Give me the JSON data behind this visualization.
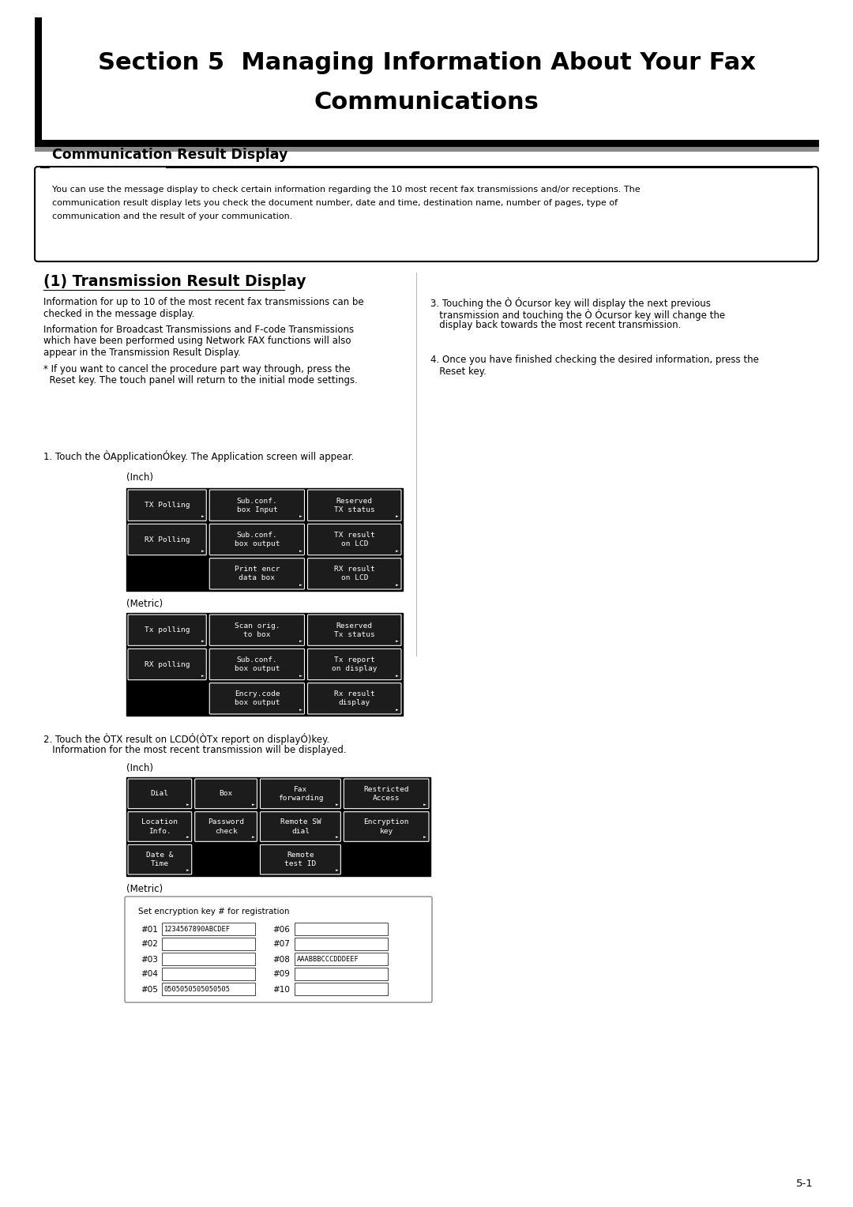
{
  "bg_color": "#ffffff",
  "title_line1": "Section 5  Managing Information About Your Fax",
  "title_line2": "Communications",
  "section_header": "Communication Result Display",
  "section_intro_lines": [
    "You can use the message display to check certain information regarding the 10 most recent fax transmissions and/or receptions. The",
    "communication result display lets you check the document number, date and time, destination name, number of pages, type of",
    "communication and the result of your communication."
  ],
  "subsection_title": "(1) Transmission Result Display",
  "left_para1": [
    "Information for up to 10 of the most recent fax transmissions can be",
    "checked in the message display."
  ],
  "left_para2": [
    "Information for Broadcast Transmissions and F-code Transmissions",
    "which have been performed using Network FAX functions will also",
    "appear in the Transmission Result Display."
  ],
  "left_para3": [
    "* If you want to cancel the procedure part way through, press the",
    "  Reset key. The touch panel will return to the initial mode settings."
  ],
  "right_text3": [
    "3. Touching the Ò Ócursor key will display the next previous",
    "   transmission and touching the Ò Ócursor key will change the",
    "   display back towards the most recent transmission."
  ],
  "right_text4": [
    "4. Once you have finished checking the desired information, press the",
    "   Reset key."
  ],
  "step1_text": "1. Touch the ÒApplicationÓkey. The Application screen will appear.",
  "inch_label": "(Inch)",
  "metric_label": "(Metric)",
  "inch_buttons": [
    [
      "TX Polling",
      "Sub.conf.\nbox Input",
      "Reserved\nTX status"
    ],
    [
      "RX Polling",
      "Sub.conf.\nbox output",
      "TX result\non LCD"
    ],
    [
      "",
      "Print encr\ndata box",
      "RX result\non LCD"
    ]
  ],
  "metric_buttons": [
    [
      "Tx polling",
      "Scan orig.\nto box",
      "Reserved\nTx status"
    ],
    [
      "RX polling",
      "Sub.conf.\nbox output",
      "Tx report\non display"
    ],
    [
      "",
      "Encry.code\nbox output",
      "Rx result\ndisplay"
    ]
  ],
  "step2_lines": [
    "2. Touch the ÒTX result on LCDÓ(ÒTx report on displayÓ)key.",
    "   Information for the most recent transmission will be displayed."
  ],
  "inch2_label": "(Inch)",
  "inch2_buttons": [
    [
      "Dial",
      "Box",
      "Fax\nforwarding",
      "Restricted\nAccess"
    ],
    [
      "Location\nInfo.",
      "Password\ncheck",
      "Remote SW\ndial",
      "Encryption\nkey"
    ],
    [
      "Date &\nTime",
      "",
      "Remote\ntest ID",
      ""
    ]
  ],
  "metric2_label": "(Metric)",
  "metric2_title": "Set encryption key # for registration",
  "metric2_rows": [
    [
      "#01",
      "1234567890ABCDEF",
      "#06",
      ""
    ],
    [
      "#02",
      "",
      "#07",
      ""
    ],
    [
      "#03",
      "",
      "#08",
      "AAABBBCCCDDDEEF"
    ],
    [
      "#04",
      "",
      "#09",
      ""
    ],
    [
      "#05",
      "0505050505050505",
      "#10",
      ""
    ]
  ],
  "page_number": "5-1"
}
